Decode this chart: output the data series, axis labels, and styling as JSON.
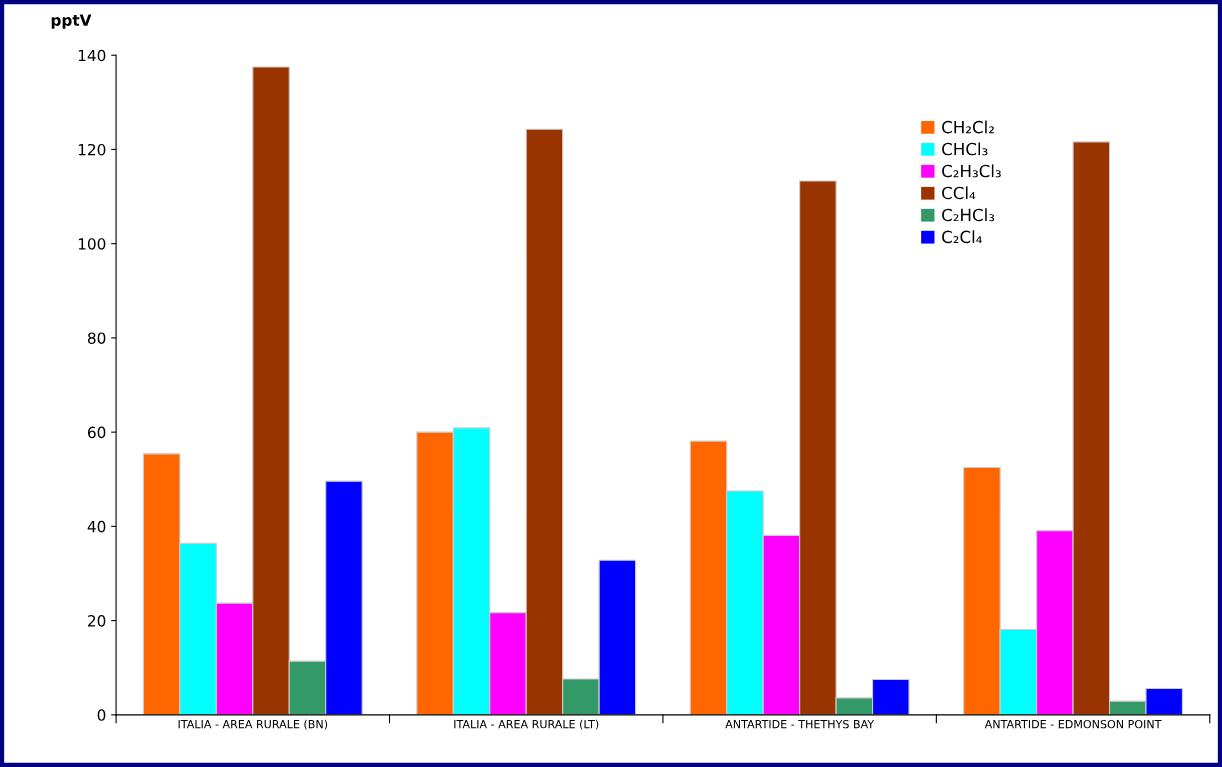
{
  "chart_data": {
    "type": "bar",
    "ylabel": "pptV",
    "categories": [
      "ITALIA - AREA RURALE (BN)",
      "ITALIA - AREA RURALE (LT)",
      "ANTARTIDE - THETHYS BAY",
      "ANTARTIDE - EDMONSON POINT"
    ],
    "series": [
      {
        "name": "CH₂Cl₂",
        "color": "#ff6600",
        "values": [
          55.4,
          60.0,
          58.1,
          52.5
        ]
      },
      {
        "name": "CHCl₃",
        "color": "#00ffff",
        "values": [
          36.4,
          60.9,
          47.5,
          18.1
        ]
      },
      {
        "name": "C₂H₃Cl₃",
        "color": "#ff00ff",
        "values": [
          23.7,
          21.7,
          38.1,
          39.1
        ]
      },
      {
        "name": "CCl₄",
        "color": "#993300",
        "values": [
          137.5,
          124.3,
          113.3,
          121.6
        ]
      },
      {
        "name": "C₂HCl₃",
        "color": "#339966",
        "values": [
          11.4,
          7.6,
          3.6,
          2.9
        ]
      },
      {
        "name": "C₂Cl₄",
        "color": "#0000ff",
        "values": [
          49.6,
          32.8,
          7.5,
          5.6
        ]
      }
    ],
    "ylim": [
      0,
      140
    ],
    "yticks": [
      0,
      20,
      40,
      60,
      80,
      100,
      120,
      140
    ],
    "grid": false,
    "legend": "top right"
  }
}
